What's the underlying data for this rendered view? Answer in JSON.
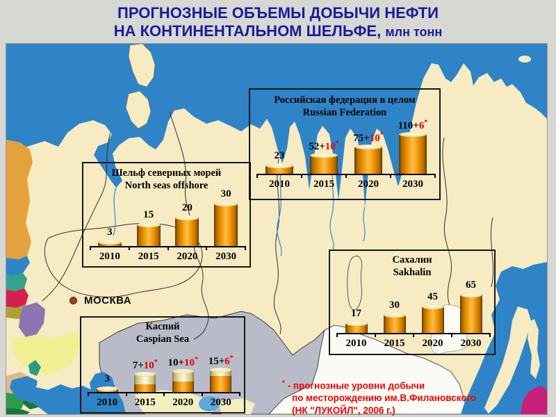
{
  "slide": {
    "title_line1": "ПРОГНОЗНЫЕ ОБЪЕМЫ ДОБЫЧИ НЕФТИ",
    "title_line2": "НА КОНТИНЕНТАЛЬНОМ ШЕЛЬФЕ,",
    "title_unit": "млн тонн"
  },
  "map": {
    "moscow_label": "МОСКВА"
  },
  "footnote": {
    "star": "*",
    "line1": " - прогнозные уровни добычи",
    "line2": "по месторождению им.В.Филановского",
    "line3": "(НК \"ЛУКОЙЛ\", 2006 г.)"
  },
  "colors": {
    "title_navy": "#1b1b98",
    "land_beige": "#f6ebc3",
    "sea_blue": "#2e84c6",
    "kazakhstan_gray": "#b9bcc8",
    "china_white": "#fbfbf6",
    "bar_orange": "#ef9404",
    "bar_cream": "#f3edc0",
    "label_red": "#e60000",
    "footnote_red": "#ee0000",
    "hokkaido_magenta": "#c81f78",
    "moscow_dot": "#a84114"
  },
  "chart_data": [
    {
      "id": "russia-total",
      "type": "bar",
      "title_ru": "Российская федерация в целом",
      "title_en": "Russian Federation",
      "categories": [
        "2010",
        "2015",
        "2020",
        "2030"
      ],
      "series": [
        {
          "name": "base",
          "values": [
            23,
            52,
            75,
            110
          ]
        },
        {
          "name": "filanovsky_addition",
          "values": [
            0,
            10,
            10,
            6
          ]
        }
      ],
      "bar_labels": [
        {
          "black": "23",
          "red": ""
        },
        {
          "black": "52+",
          "red": "10*"
        },
        {
          "black": "75+",
          "red": "10*"
        },
        {
          "black": "110+",
          "red": "6*"
        }
      ],
      "stacked_visual": false,
      "ylim": [
        0,
        120
      ],
      "grid": false,
      "legend": false
    },
    {
      "id": "north-seas",
      "type": "bar",
      "title_ru": "Шельф северных морей",
      "title_en": "North seas offshore",
      "categories": [
        "2010",
        "2015",
        "2020",
        "2030"
      ],
      "series": [
        {
          "name": "base",
          "values": [
            3,
            15,
            20,
            30
          ]
        }
      ],
      "bar_labels": [
        {
          "black": "3",
          "red": ""
        },
        {
          "black": "15",
          "red": ""
        },
        {
          "black": "20",
          "red": ""
        },
        {
          "black": "30",
          "red": ""
        }
      ],
      "stacked_visual": false,
      "ylim": [
        0,
        32
      ],
      "grid": false,
      "legend": false
    },
    {
      "id": "sakhalin",
      "type": "bar",
      "title_ru": "Сахалин",
      "title_en": "Sakhalin",
      "categories": [
        "2010",
        "2015",
        "2020",
        "2030"
      ],
      "series": [
        {
          "name": "base",
          "values": [
            17,
            30,
            45,
            65
          ]
        }
      ],
      "bar_labels": [
        {
          "black": "17",
          "red": ""
        },
        {
          "black": "30",
          "red": ""
        },
        {
          "black": "45",
          "red": ""
        },
        {
          "black": "65",
          "red": ""
        }
      ],
      "stacked_visual": false,
      "ylim": [
        0,
        70
      ],
      "grid": false,
      "legend": false
    },
    {
      "id": "caspian",
      "type": "bar",
      "title_ru": "Каспий",
      "title_en": "Caspian Sea",
      "categories": [
        "2010",
        "2015",
        "2020",
        "2030"
      ],
      "series": [
        {
          "name": "base",
          "values": [
            3,
            7,
            10,
            15
          ]
        },
        {
          "name": "filanovsky_addition",
          "values": [
            0,
            10,
            10,
            6
          ]
        }
      ],
      "bar_labels": [
        {
          "black": "3",
          "red": ""
        },
        {
          "black": "7+",
          "red": "10*"
        },
        {
          "black": "10+",
          "red": "10*"
        },
        {
          "black": "15+",
          "red": "6*"
        }
      ],
      "stacked_visual": true,
      "ylim": [
        0,
        22
      ],
      "grid": false,
      "legend": false
    }
  ]
}
